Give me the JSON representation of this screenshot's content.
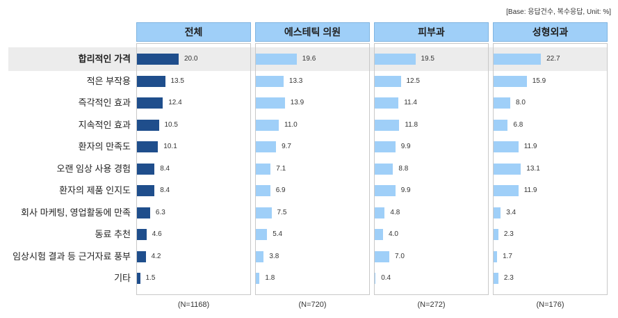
{
  "note": "[Base: 응답건수, 복수응답, Unit: %]",
  "colors": {
    "total_bar": "#1f4e8c",
    "sub_bar": "#9fcff8",
    "header_bg": "#9fcff8",
    "highlight": "#ececec"
  },
  "chart_data": {
    "type": "bar",
    "orientation": "horizontal",
    "categories": [
      "합리적인 가격",
      "적은 부작용",
      "즉각적인 효과",
      "지속적인 효과",
      "환자의 만족도",
      "오랜 임상 사용 경험",
      "환자의 제품 인지도",
      "회사 마케팅, 영업활동에 만족",
      "동료 추천",
      "임상시험 결과 등 근거자료 풍부",
      "기타"
    ],
    "series": [
      {
        "name": "전체",
        "n": "(N=1168)",
        "values": [
          20.0,
          13.5,
          12.4,
          10.5,
          10.1,
          8.4,
          8.4,
          6.3,
          4.6,
          4.2,
          1.5
        ]
      },
      {
        "name": "에스테틱 의원",
        "n": "(N=720)",
        "values": [
          19.6,
          13.3,
          13.9,
          11.0,
          9.7,
          7.1,
          6.9,
          7.5,
          5.4,
          3.8,
          1.8
        ]
      },
      {
        "name": "피부과",
        "n": "(N=272)",
        "values": [
          19.5,
          12.5,
          11.4,
          11.8,
          9.9,
          8.8,
          9.9,
          4.8,
          4.0,
          7.0,
          0.4
        ]
      },
      {
        "name": "성형외과",
        "n": "(N=176)",
        "values": [
          22.7,
          15.9,
          8.0,
          6.8,
          11.9,
          13.1,
          11.9,
          3.4,
          2.3,
          1.7,
          2.3
        ]
      }
    ],
    "bold_category": "합리적인 가격",
    "grid": false,
    "legend": "none"
  }
}
